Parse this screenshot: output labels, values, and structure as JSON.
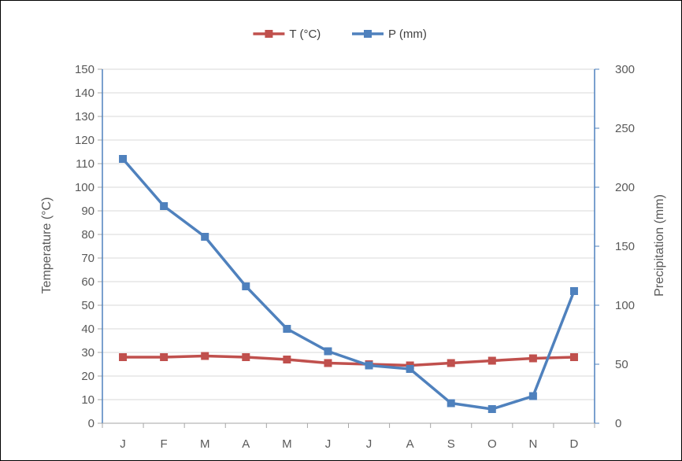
{
  "chart_data": {
    "type": "line",
    "categories": [
      "J",
      "F",
      "M",
      "A",
      "M",
      "J",
      "J",
      "A",
      "S",
      "O",
      "N",
      "D"
    ],
    "series": [
      {
        "name": "T (°C)",
        "axis": "left",
        "color": "#c0504d",
        "values": [
          28,
          28,
          28.5,
          28,
          27,
          25.5,
          25,
          24.5,
          25.5,
          26.5,
          27.5,
          28
        ]
      },
      {
        "name": "P (mm)",
        "axis": "right",
        "color": "#4f81bd",
        "values": [
          224,
          184,
          158,
          116,
          80,
          61,
          49,
          46,
          17,
          12,
          23,
          112
        ]
      }
    ],
    "ylabel": "Temperature (°C)",
    "y2label": "Precipitation (mm)",
    "ylim": [
      0,
      150
    ],
    "y2lim": [
      0,
      300
    ],
    "yticks": [
      "0",
      "10",
      "20",
      "30",
      "40",
      "50",
      "60",
      "70",
      "80",
      "90",
      "100",
      "110",
      "120",
      "130",
      "140",
      "150"
    ],
    "y2ticks": [
      "0",
      "50",
      "100",
      "150",
      "200",
      "250",
      "300"
    ],
    "grid": true,
    "legend_position": "top-center"
  }
}
